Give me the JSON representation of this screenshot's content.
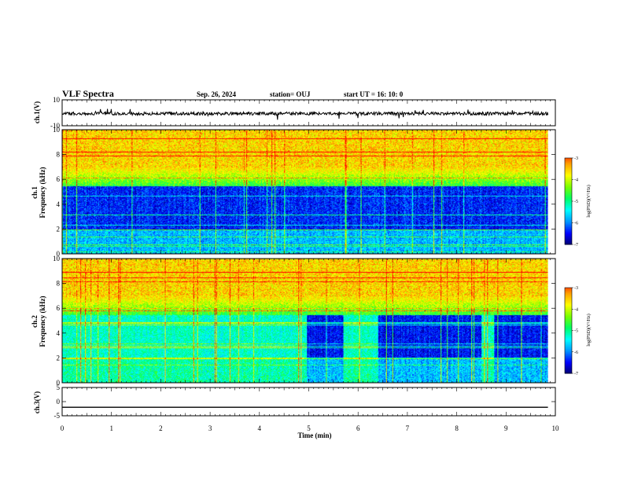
{
  "header": {
    "title": "VLF Spectra",
    "date": "Sep. 26, 2024",
    "station": "station= OUJ",
    "start": "start  UT  =   16: 10: 0"
  },
  "chart_data": [
    {
      "type": "line",
      "panel": "ch1-waveform",
      "ylabel": "ch.1(V)",
      "ylim": [
        -10,
        10
      ],
      "yticks": [
        "10",
        "-10"
      ],
      "xlim": [
        0,
        10
      ],
      "series": [
        {
          "values_baseline": 0.0,
          "amplitude": 1.5
        }
      ]
    },
    {
      "type": "heatmap",
      "panel": "ch1-spectrogram",
      "ylabel_line1": "ch.1",
      "ylabel_line2": "Frequency  (kHz)",
      "ylim": [
        0,
        10
      ],
      "yticks": [
        "0",
        "2",
        "4",
        "6",
        "8",
        "10"
      ],
      "xlim": [
        0,
        9.85
      ],
      "colorbar": {
        "label": "log(PSD)(V²/Hz)",
        "range": [
          -7,
          -3
        ],
        "ticks": [
          "-3",
          "-4",
          "-5",
          "-6",
          "-7"
        ]
      }
    },
    {
      "type": "heatmap",
      "panel": "ch2-spectrogram",
      "ylabel_line1": "ch.2",
      "ylabel_line2": "Frequency  (kHz)",
      "ylim": [
        0,
        10
      ],
      "yticks": [
        "0",
        "2",
        "4",
        "6",
        "8",
        "10"
      ],
      "xlim": [
        0,
        9.85
      ],
      "quiet_intervals_min": [
        [
          4.95,
          5.7
        ],
        [
          6.4,
          8.5
        ],
        [
          8.75,
          9.85
        ]
      ],
      "colorbar": {
        "label": "log(PSD)(V²/Hz)",
        "range": [
          -7,
          -3
        ],
        "ticks": [
          "-3",
          "-4",
          "-5",
          "-6",
          "-7"
        ]
      }
    },
    {
      "type": "line",
      "panel": "ch3-waveform",
      "ylabel": "ch.3(V)",
      "ylim": [
        -5,
        5
      ],
      "yticks": [
        "5",
        "0",
        "-5"
      ],
      "xlim": [
        0,
        10
      ],
      "series": [
        {
          "values_baseline": -2.0,
          "amplitude": 0.0
        }
      ]
    }
  ],
  "xaxis": {
    "label": "Time  (min)",
    "ticks": [
      "0",
      "1",
      "2",
      "3",
      "4",
      "5",
      "6",
      "7",
      "8",
      "9",
      "10"
    ]
  },
  "colors": {
    "scale": [
      "#00006e",
      "#0000ff",
      "#0096ff",
      "#00ffff",
      "#00ff64",
      "#78ff00",
      "#ffff00",
      "#ffa000",
      "#ff0000",
      "#ffffff"
    ]
  }
}
